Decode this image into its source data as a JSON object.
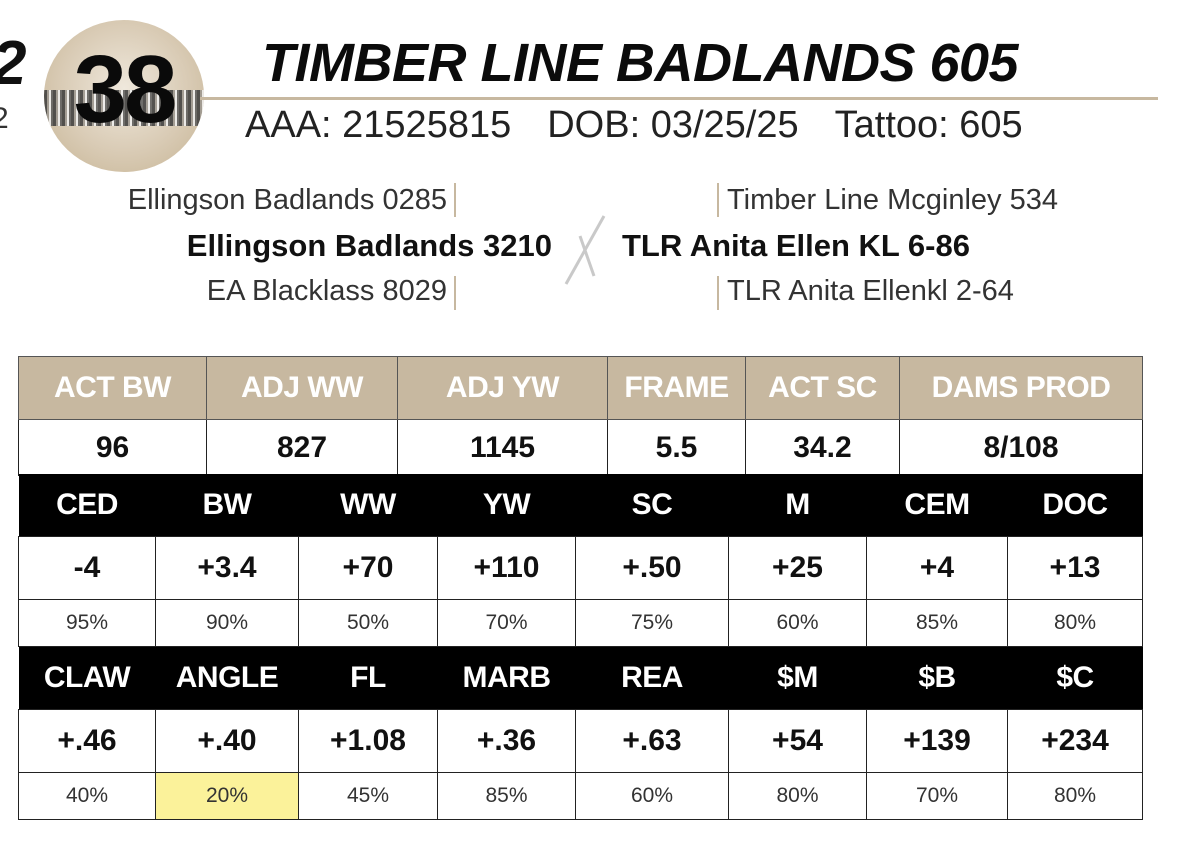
{
  "header": {
    "edge_fragment_top": "2",
    "edge_fragment_bottom": "2",
    "lot_number": "38",
    "title": "TIMBER LINE BADLANDS 605",
    "aaa": "AAA: 21525815",
    "dob": "DOB: 03/25/25",
    "tattoo": "Tattoo: 605"
  },
  "pedigree": {
    "sire_sire": "Ellingson Badlands 0285",
    "sire": "Ellingson Badlands 3210",
    "sire_dam": "EA Blacklass 8029",
    "dam_sire": "Timber Line Mcginley 534",
    "dam": "TLR Anita Ellen KL 6-86",
    "dam_dam": "TLR Anita Ellenkl 2-64"
  },
  "performance": {
    "headers": [
      "ACT BW",
      "ADJ WW",
      "ADJ YW",
      "FRAME",
      "ACT SC",
      "DAMS PROD"
    ],
    "values": [
      "96",
      "827",
      "1145",
      "5.5",
      "34.2",
      "8/108"
    ]
  },
  "epds_1": {
    "headers": [
      "CED",
      "BW",
      "WW",
      "YW",
      "SC",
      "M",
      "CEM",
      "DOC"
    ],
    "values": [
      "-4",
      "+3.4",
      "+70",
      "+110",
      "+.50",
      "+25",
      "+4",
      "+13"
    ],
    "percentiles": [
      "95%",
      "90%",
      "50%",
      "70%",
      "75%",
      "60%",
      "85%",
      "80%"
    ]
  },
  "epds_2": {
    "headers": [
      "CLAW",
      "ANGLE",
      "FL",
      "MARB",
      "REA",
      "$M",
      "$B",
      "$C"
    ],
    "values": [
      "+.46",
      "+.40",
      "+1.08",
      "+.36",
      "+.63",
      "+54",
      "+139",
      "+234"
    ],
    "percentiles": [
      "40%",
      "20%",
      "45%",
      "85%",
      "60%",
      "80%",
      "70%",
      "80%"
    ],
    "highlight_color": "#fbf29a"
  },
  "colors": {
    "tan": "#c7b8a0",
    "black": "#000000"
  }
}
